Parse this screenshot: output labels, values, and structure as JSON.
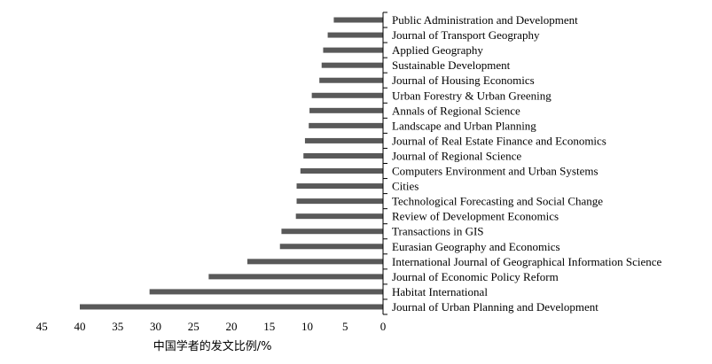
{
  "chart_data": {
    "type": "bar",
    "orientation": "horizontal",
    "x_direction": "reversed",
    "categories": [
      "Public Administration and Development",
      "Journal of Transport Geography",
      "Applied Geography",
      "Sustainable Development",
      "Journal of Housing Economics",
      "Urban Forestry & Urban Greening",
      "Annals of Regional Science",
      "Landscape and Urban Planning",
      "Journal of Real Estate Finance and Economics",
      "Journal of Regional Science",
      "Computers Environment and Urban Systems",
      "Cities",
      "Technological Forecasting and Social Change",
      "Review of Development Economics",
      "Transactions in GIS",
      "Eurasian Geography and Economics",
      "International Journal of Geographical Information Science",
      "Journal of Economic Policy Reform",
      "Habitat International",
      "Journal of Urban Planning and Development"
    ],
    "values": [
      6.5,
      7.3,
      7.9,
      8.1,
      8.4,
      9.4,
      9.7,
      9.8,
      10.3,
      10.5,
      10.9,
      11.4,
      11.4,
      11.5,
      13.4,
      13.6,
      17.9,
      23.0,
      30.8,
      40.0
    ],
    "xlim": [
      0,
      45
    ],
    "xticks": [
      45,
      40,
      35,
      30,
      25,
      20,
      15,
      10,
      5,
      0
    ],
    "xlabel": "中国学者的发文比例/%",
    "ylabel": "",
    "title": "",
    "legend": "none",
    "grid": false,
    "bar_color": "#595959"
  }
}
